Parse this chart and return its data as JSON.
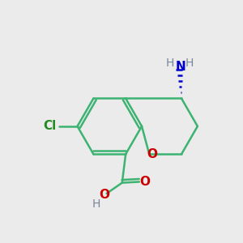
{
  "bg_color": "#ebebeb",
  "bond_color": "#3cb371",
  "n_color": "#0000cd",
  "o_color": "#cc0000",
  "cl_color": "#228b22",
  "h_color": "#778899",
  "line_width": 1.8,
  "font_size_atom": 11,
  "fig_size": [
    3.0,
    3.0
  ],
  "dpi": 100,
  "xlim": [
    0,
    10
  ],
  "ylim": [
    0,
    10
  ]
}
